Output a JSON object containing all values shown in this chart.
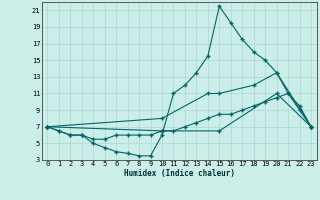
{
  "xlabel": "Humidex (Indice chaleur)",
  "bg_color": "#cceee8",
  "line_color": "#006666",
  "grid_color": "#aad8d3",
  "xlim": [
    -0.5,
    23.5
  ],
  "ylim": [
    3,
    22
  ],
  "xticks": [
    0,
    1,
    2,
    3,
    4,
    5,
    6,
    7,
    8,
    9,
    10,
    11,
    12,
    13,
    14,
    15,
    16,
    17,
    18,
    19,
    20,
    21,
    22,
    23
  ],
  "yticks": [
    3,
    5,
    7,
    9,
    11,
    13,
    15,
    17,
    19,
    21
  ],
  "line1_x": [
    0,
    1,
    2,
    3,
    4,
    5,
    6,
    7,
    8,
    9,
    10,
    11,
    12,
    13,
    14,
    15,
    16,
    17,
    18,
    19,
    20,
    21,
    22,
    23
  ],
  "line1_y": [
    7,
    6.5,
    6,
    6,
    5,
    4.5,
    4,
    3.8,
    3.5,
    3.5,
    6,
    11,
    12,
    13.5,
    15.5,
    21.5,
    19.5,
    17.5,
    16,
    15,
    13.5,
    11,
    9.5,
    7
  ],
  "line2_x": [
    0,
    1,
    2,
    3,
    4,
    5,
    6,
    7,
    8,
    9,
    10,
    11,
    12,
    13,
    14,
    15,
    16,
    17,
    18,
    19,
    20,
    21,
    22,
    23
  ],
  "line2_y": [
    7,
    6.5,
    6,
    6,
    5.5,
    5.5,
    6,
    6,
    6,
    6,
    6.5,
    6.5,
    7,
    7.5,
    8,
    8.5,
    8.5,
    9,
    9.5,
    10,
    10.5,
    11,
    9,
    7
  ],
  "line3_x": [
    0,
    10,
    14,
    15,
    18,
    20,
    23
  ],
  "line3_y": [
    7,
    8,
    11,
    11,
    12,
    13.5,
    7
  ],
  "line4_x": [
    0,
    10,
    15,
    20,
    23
  ],
  "line4_y": [
    7,
    6.5,
    6.5,
    11,
    7
  ]
}
